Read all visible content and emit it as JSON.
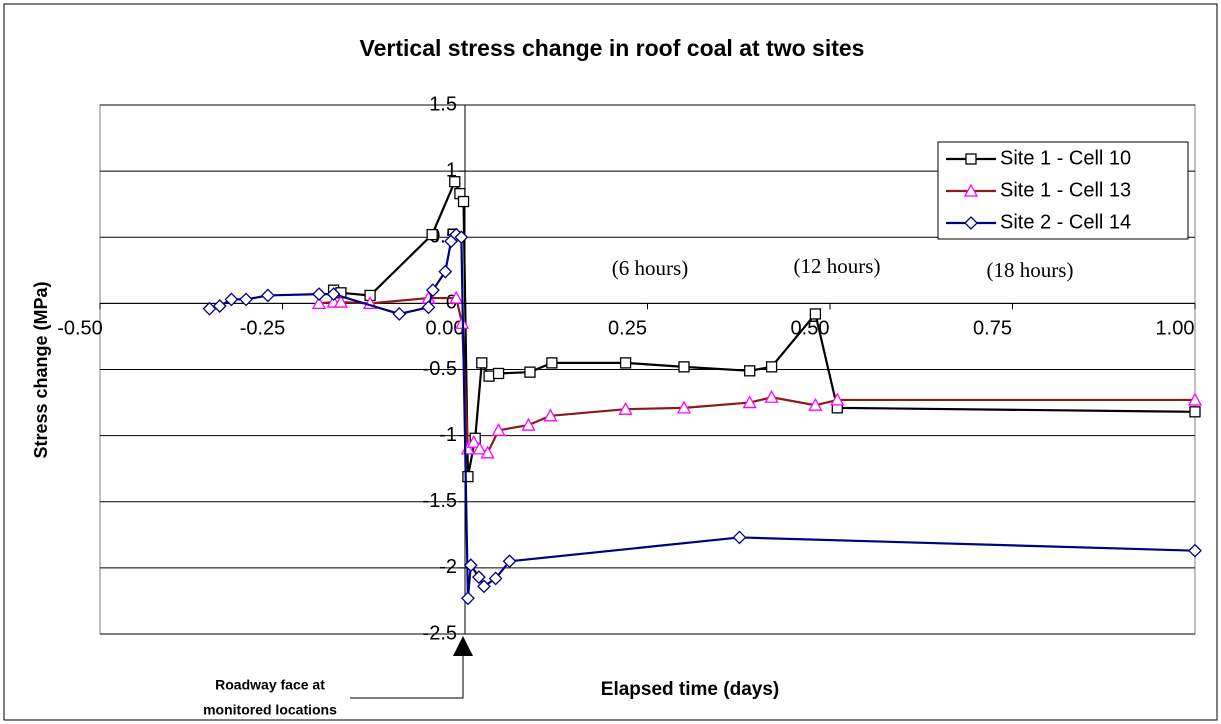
{
  "chart_data": {
    "type": "line",
    "title": "Vertical stress change in roof coal at two sites",
    "x_label": "Elapsed time (days)",
    "y_label": "Stress change (MPa)",
    "xlim": [
      -0.5,
      1.0
    ],
    "xticks": [
      {
        "value": -0.5,
        "label": "-0.50"
      },
      {
        "value": -0.25,
        "label": "-0.25"
      },
      {
        "value": 0,
        "label": "0.00"
      },
      {
        "value": 0.25,
        "label": "0.25"
      },
      {
        "value": 0.5,
        "label": "0.50"
      },
      {
        "value": 0.75,
        "label": "0.75"
      },
      {
        "value": 1.0,
        "label": "1.00"
      }
    ],
    "ylim": [
      -2.5,
      1.5
    ],
    "yticks": [
      1.5,
      1,
      0.5,
      0,
      -0.5,
      -1,
      -1.5,
      -2,
      -2.5
    ],
    "grid": true,
    "legend": "top-right",
    "annotations": [
      "(6 hours)",
      "(12 hours)",
      "(18 hours)"
    ],
    "roadway_note": [
      "Roadway face at",
      "monitored locations"
    ],
    "series": [
      {
        "name": "Site 1 - Cell 10",
        "color": "#000000",
        "marker": "square",
        "marker_color": "#000000",
        "x": [
          -0.18,
          -0.17,
          -0.13,
          -0.045,
          -0.014,
          -0.007,
          -0.002,
          0.004,
          0.014,
          0.023,
          0.033,
          0.046,
          0.089,
          0.119,
          0.22,
          0.3,
          0.39,
          0.42,
          0.48,
          0.51,
          1.0
        ],
        "values": [
          0.1,
          0.08,
          0.06,
          0.52,
          0.92,
          0.83,
          0.77,
          -1.31,
          -1.02,
          -0.45,
          -0.55,
          -0.53,
          -0.52,
          -0.45,
          -0.45,
          -0.48,
          -0.51,
          -0.48,
          -0.08,
          -0.79,
          -0.82
        ]
      },
      {
        "name": "Site 1 - Cell 13",
        "color": "#8b1a1a",
        "marker": "triangle",
        "marker_color": "#ff00ff",
        "x": [
          -0.2,
          -0.18,
          -0.17,
          -0.13,
          -0.05,
          -0.012,
          -0.004,
          0.004,
          0.012,
          0.02,
          0.031,
          0.046,
          0.087,
          0.117,
          0.22,
          0.3,
          0.39,
          0.42,
          0.48,
          0.51,
          1.0
        ],
        "values": [
          0,
          0.01,
          0.01,
          0,
          0.04,
          0.04,
          -0.15,
          -1.1,
          -1.05,
          -1.1,
          -1.13,
          -0.96,
          -0.92,
          -0.85,
          -0.8,
          -0.79,
          -0.75,
          -0.71,
          -0.77,
          -0.73,
          -0.73
        ]
      },
      {
        "name": "Site 2 - Cell 14",
        "color": "#000080",
        "marker": "diamond",
        "marker_color": "#000080",
        "x": [
          -0.35,
          -0.336,
          -0.32,
          -0.3,
          -0.27,
          -0.2,
          -0.18,
          -0.09,
          -0.05,
          -0.044,
          -0.027,
          -0.019,
          -0.012,
          -0.005,
          0.004,
          0.008,
          0.019,
          0.026,
          0.042,
          0.061,
          0.376,
          1.0
        ],
        "values": [
          -0.04,
          -0.02,
          0.03,
          0.03,
          0.06,
          0.07,
          0.07,
          -0.08,
          -0.03,
          0.1,
          0.24,
          0.47,
          0.52,
          0.5,
          -2.23,
          -1.98,
          -2.07,
          -2.14,
          -2.08,
          -1.95,
          -1.77,
          -1.87
        ]
      }
    ]
  }
}
